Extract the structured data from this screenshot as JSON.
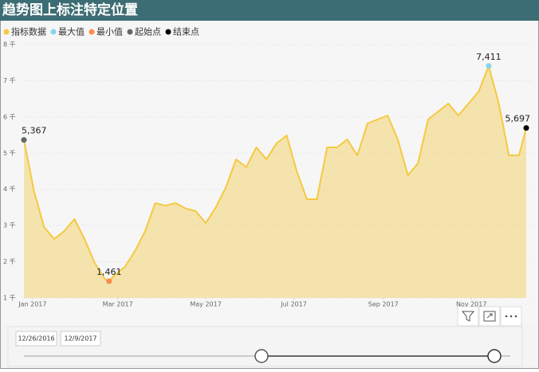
{
  "header": {
    "title": "趋势图上标注特定位置"
  },
  "chart_data": {
    "type": "area",
    "xlim": [
      "2016-12-26",
      "2017-12-09"
    ],
    "xticks": [
      {
        "value": "2017-01-01",
        "label": "Jan 2017"
      },
      {
        "value": "2017-03-01",
        "label": "Mar 2017"
      },
      {
        "value": "2017-05-01",
        "label": "May 2017"
      },
      {
        "value": "2017-07-01",
        "label": "Jul 2017"
      },
      {
        "value": "2017-09-01",
        "label": "Sep 2017"
      },
      {
        "value": "2017-11-01",
        "label": "Nov 2017"
      }
    ],
    "ylim": [
      1000,
      8000
    ],
    "yticks": [
      {
        "value": 1000,
        "label": "1 千"
      },
      {
        "value": 2000,
        "label": "2 千"
      },
      {
        "value": 3000,
        "label": "3 千"
      },
      {
        "value": 4000,
        "label": "4 千"
      },
      {
        "value": 5000,
        "label": "5 千"
      },
      {
        "value": 6000,
        "label": "6 千"
      },
      {
        "value": 7000,
        "label": "7 千"
      },
      {
        "value": 8000,
        "label": "8 千"
      }
    ],
    "grid": true,
    "series": [
      {
        "name": "指标数据",
        "color": "#f5c940",
        "x": [
          "2016-12-26",
          "2017-01-02",
          "2017-01-09",
          "2017-01-16",
          "2017-01-23",
          "2017-01-30",
          "2017-02-06",
          "2017-02-13",
          "2017-02-20",
          "2017-02-23",
          "2017-02-27",
          "2017-03-06",
          "2017-03-13",
          "2017-03-20",
          "2017-03-27",
          "2017-04-03",
          "2017-04-10",
          "2017-04-17",
          "2017-04-24",
          "2017-05-01",
          "2017-05-08",
          "2017-05-15",
          "2017-05-22",
          "2017-05-29",
          "2017-06-05",
          "2017-06-12",
          "2017-06-19",
          "2017-06-26",
          "2017-07-03",
          "2017-07-10",
          "2017-07-17",
          "2017-07-24",
          "2017-07-31",
          "2017-08-07",
          "2017-08-14",
          "2017-08-21",
          "2017-08-28",
          "2017-09-04",
          "2017-09-11",
          "2017-09-18",
          "2017-09-25",
          "2017-10-02",
          "2017-10-09",
          "2017-10-16",
          "2017-10-23",
          "2017-10-30",
          "2017-11-06",
          "2017-11-13",
          "2017-11-20",
          "2017-11-27",
          "2017-12-04",
          "2017-12-09"
        ],
        "values": [
          5367,
          3950,
          2960,
          2630,
          2850,
          3180,
          2630,
          1970,
          1530,
          1461,
          1640,
          1860,
          2300,
          2850,
          3620,
          3550,
          3620,
          3470,
          3400,
          3070,
          3510,
          4060,
          4830,
          4610,
          5160,
          4830,
          5270,
          5490,
          4500,
          3730,
          3730,
          5160,
          5160,
          5380,
          4940,
          5820,
          5930,
          6040,
          5380,
          4390,
          4720,
          5930,
          6150,
          6370,
          6040,
          6370,
          6700,
          7411,
          6370,
          4940,
          4940,
          5697
        ]
      },
      {
        "name": "最大值",
        "color": "#8ad4eb",
        "x": [
          "2017-11-13"
        ],
        "values": [
          7411
        ],
        "value_labels": [
          "7,411"
        ]
      },
      {
        "name": "最小值",
        "color": "#fd8b4b",
        "x": [
          "2017-02-23"
        ],
        "values": [
          1461
        ],
        "value_labels": [
          "1,461"
        ]
      },
      {
        "name": "起始点",
        "color": "#666666",
        "x": [
          "2016-12-26"
        ],
        "values": [
          5367
        ],
        "value_labels": [
          "5,367"
        ]
      },
      {
        "name": "结束点",
        "color": "#000000",
        "x": [
          "2017-12-09"
        ],
        "values": [
          5697
        ],
        "value_labels": [
          "5,697"
        ]
      }
    ]
  },
  "slicer": {
    "start": "12/26/2016",
    "end": "12/9/2017"
  }
}
